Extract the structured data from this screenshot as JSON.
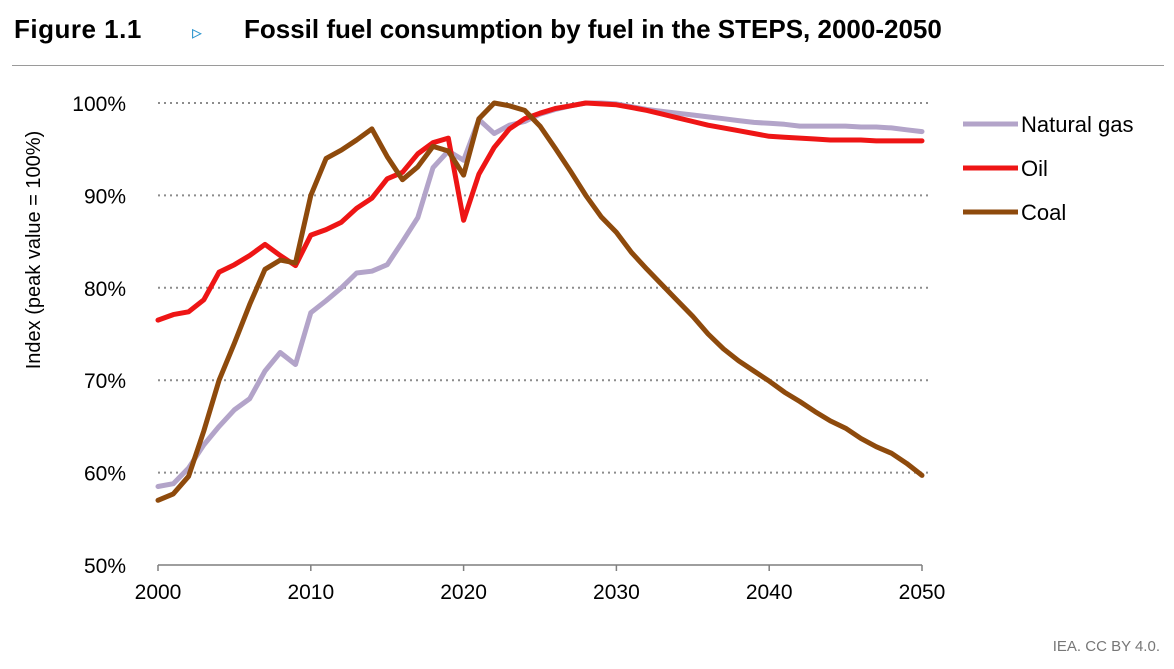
{
  "header": {
    "figure_label": "Figure 1.1",
    "arrow_glyph": "▹",
    "title": "Fossil fuel consumption by fuel in the STEPS, 2000-2050"
  },
  "credit": "IEA. CC BY 4.0.",
  "colors": {
    "gas": "#b3a4c9",
    "oil": "#ee1515",
    "coal": "#8e4a0c",
    "grid": "#8c8c8c"
  },
  "chart_data": {
    "type": "line",
    "title": "Fossil fuel consumption by fuel in the STEPS, 2000-2050",
    "ylabel": "Index (peak value = 100%)",
    "xlabel": "",
    "xlim": [
      2000,
      2050
    ],
    "ylim": [
      50,
      100
    ],
    "xticks": [
      2000,
      2010,
      2020,
      2030,
      2040,
      2050
    ],
    "yticks": [
      50,
      60,
      70,
      80,
      90,
      100
    ],
    "ytick_labels": [
      "50%",
      "60%",
      "70%",
      "80%",
      "90%",
      "100%"
    ],
    "grid": "horizontal dotted",
    "legend_position": "top-right",
    "series": [
      {
        "name": "Natural gas",
        "color": "#b3a4c9",
        "x": [
          2000,
          2001,
          2002,
          2003,
          2004,
          2005,
          2006,
          2007,
          2008,
          2009,
          2010,
          2011,
          2012,
          2013,
          2014,
          2015,
          2016,
          2017,
          2018,
          2019,
          2020,
          2021,
          2022,
          2023,
          2024,
          2025,
          2026,
          2027,
          2028,
          2029,
          2030,
          2031,
          2032,
          2033,
          2034,
          2035,
          2036,
          2037,
          2038,
          2039,
          2040,
          2041,
          2042,
          2043,
          2044,
          2045,
          2046,
          2047,
          2048,
          2049,
          2050
        ],
        "y": [
          58.5,
          58.8,
          60.5,
          63,
          65,
          66.8,
          68,
          71,
          73,
          71.7,
          77.3,
          78.6,
          80,
          81.6,
          81.8,
          82.5,
          85,
          87.6,
          93,
          94.8,
          93.8,
          98.2,
          96.7,
          97.6,
          98,
          98.8,
          99.3,
          99.7,
          100,
          100,
          99.9,
          99.6,
          99.3,
          99.1,
          98.9,
          98.7,
          98.5,
          98.3,
          98.1,
          97.9,
          97.8,
          97.7,
          97.5,
          97.5,
          97.5,
          97.5,
          97.4,
          97.4,
          97.3,
          97.1,
          96.9
        ]
      },
      {
        "name": "Oil",
        "color": "#ee1515",
        "x": [
          2000,
          2001,
          2002,
          2003,
          2004,
          2005,
          2006,
          2007,
          2008,
          2009,
          2010,
          2011,
          2012,
          2013,
          2014,
          2015,
          2016,
          2017,
          2018,
          2019,
          2020,
          2021,
          2022,
          2023,
          2024,
          2025,
          2026,
          2027,
          2028,
          2029,
          2030,
          2031,
          2032,
          2033,
          2034,
          2035,
          2036,
          2037,
          2038,
          2039,
          2040,
          2041,
          2042,
          2043,
          2044,
          2045,
          2046,
          2047,
          2048,
          2049,
          2050
        ],
        "y": [
          76.5,
          77.1,
          77.4,
          78.7,
          81.7,
          82.5,
          83.5,
          84.7,
          83.5,
          82.4,
          85.7,
          86.3,
          87.1,
          88.6,
          89.7,
          91.8,
          92.5,
          94.5,
          95.7,
          96.2,
          87.3,
          92.3,
          95.2,
          97.2,
          98.3,
          98.9,
          99.4,
          99.7,
          100,
          99.9,
          99.8,
          99.5,
          99.2,
          98.8,
          98.4,
          98.0,
          97.6,
          97.3,
          97.0,
          96.7,
          96.4,
          96.3,
          96.2,
          96.1,
          96.0,
          96.0,
          96.0,
          95.9,
          95.9,
          95.9,
          95.9
        ]
      },
      {
        "name": "Coal",
        "color": "#8e4a0c",
        "x": [
          2000,
          2001,
          2002,
          2003,
          2004,
          2005,
          2006,
          2007,
          2008,
          2009,
          2010,
          2011,
          2012,
          2013,
          2014,
          2015,
          2016,
          2017,
          2018,
          2019,
          2020,
          2021,
          2022,
          2023,
          2024,
          2025,
          2026,
          2027,
          2028,
          2029,
          2030,
          2031,
          2032,
          2033,
          2034,
          2035,
          2036,
          2037,
          2038,
          2039,
          2040,
          2041,
          2042,
          2043,
          2044,
          2045,
          2046,
          2047,
          2048,
          2049,
          2050
        ],
        "y": [
          57,
          57.7,
          59.6,
          64.5,
          70,
          74,
          78.2,
          82,
          83,
          82.7,
          90,
          94,
          94.9,
          96,
          97.2,
          94.2,
          91.7,
          93.1,
          95.3,
          94.8,
          92.2,
          98.3,
          100,
          99.7,
          99.2,
          97.5,
          95.1,
          92.6,
          90,
          87.7,
          86,
          83.8,
          82,
          80.3,
          78.6,
          76.9,
          75,
          73.4,
          72.1,
          71,
          69.9,
          68.7,
          67.7,
          66.6,
          65.6,
          64.8,
          63.7,
          62.8,
          62.1,
          61,
          59.7
        ]
      }
    ]
  }
}
